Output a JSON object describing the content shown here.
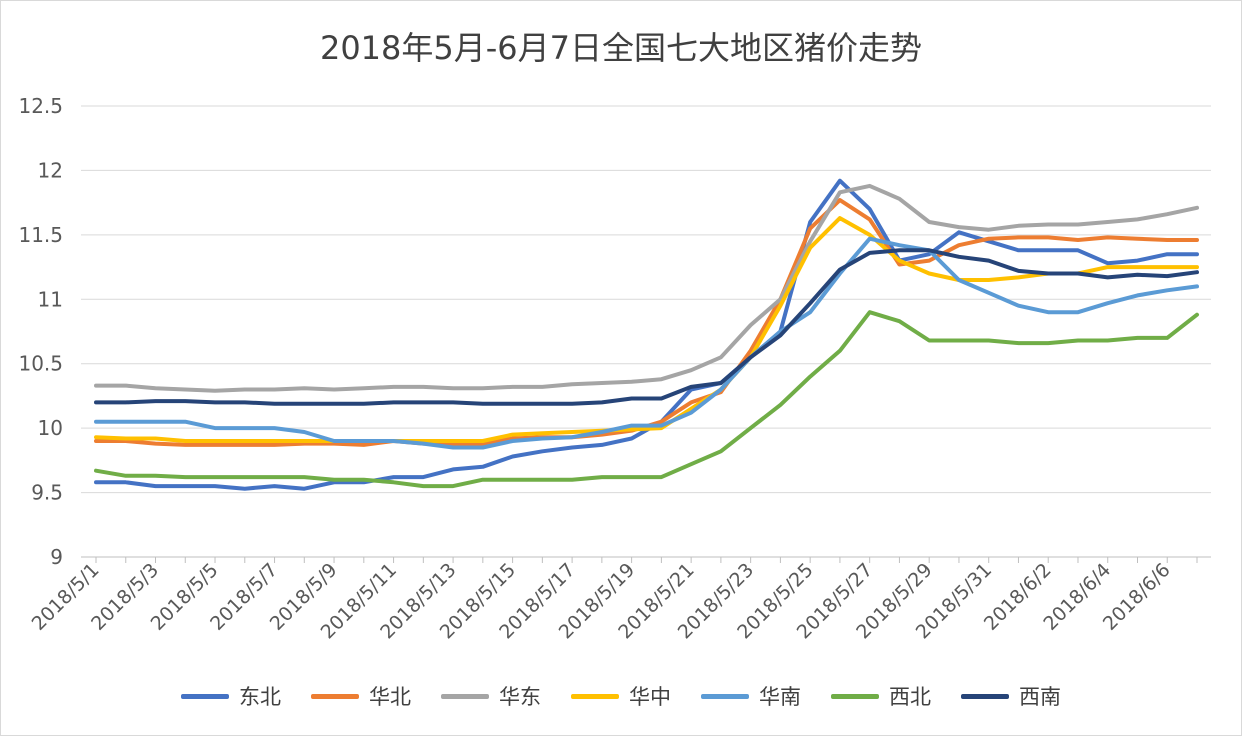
{
  "chart_data": {
    "type": "line",
    "title": "2018年5月-6月7日全国七大地区猪价走势",
    "xlabel": "",
    "ylabel": "",
    "ylim": [
      9,
      12.5
    ],
    "yticks": [
      "9",
      "9.5",
      "10",
      "10.5",
      "11",
      "11.5",
      "12",
      "12.5"
    ],
    "grid": true,
    "legend_position": "bottom",
    "x_labels": [
      "2018/5/1",
      "2018/5/3",
      "2018/5/5",
      "2018/5/7",
      "2018/5/9",
      "2018/5/11",
      "2018/5/13",
      "2018/5/15",
      "2018/5/17",
      "2018/5/19",
      "2018/5/21",
      "2018/5/23",
      "2018/5/25",
      "2018/5/27",
      "2018/5/29",
      "2018/5/31",
      "2018/6/2",
      "2018/6/4",
      "2018/6/6"
    ],
    "x": [
      "2018/5/1",
      "2018/5/2",
      "2018/5/3",
      "2018/5/4",
      "2018/5/5",
      "2018/5/6",
      "2018/5/7",
      "2018/5/8",
      "2018/5/9",
      "2018/5/10",
      "2018/5/11",
      "2018/5/12",
      "2018/5/13",
      "2018/5/14",
      "2018/5/15",
      "2018/5/16",
      "2018/5/17",
      "2018/5/18",
      "2018/5/19",
      "2018/5/20",
      "2018/5/21",
      "2018/5/22",
      "2018/5/23",
      "2018/5/24",
      "2018/5/25",
      "2018/5/26",
      "2018/5/27",
      "2018/5/28",
      "2018/5/29",
      "2018/5/30",
      "2018/5/31",
      "2018/6/1",
      "2018/6/2",
      "2018/6/3",
      "2018/6/4",
      "2018/6/5",
      "2018/6/6",
      "2018/6/7"
    ],
    "series": [
      {
        "name": "东北",
        "color": "#4472c4",
        "values": [
          9.58,
          9.58,
          9.55,
          9.55,
          9.55,
          9.53,
          9.55,
          9.53,
          9.58,
          9.58,
          9.62,
          9.62,
          9.68,
          9.7,
          9.78,
          9.82,
          9.85,
          9.87,
          9.92,
          10.05,
          10.3,
          10.35,
          10.55,
          10.75,
          11.6,
          11.92,
          11.7,
          11.3,
          11.35,
          11.52,
          11.45,
          11.38,
          11.38,
          11.38,
          11.28,
          11.3,
          11.35,
          11.35
        ]
      },
      {
        "name": "华北",
        "color": "#ed7d31",
        "values": [
          9.9,
          9.9,
          9.88,
          9.87,
          9.87,
          9.87,
          9.87,
          9.88,
          9.88,
          9.87,
          9.9,
          9.88,
          9.88,
          9.88,
          9.92,
          9.93,
          9.93,
          9.95,
          9.98,
          10.05,
          10.2,
          10.28,
          10.6,
          11.0,
          11.55,
          11.77,
          11.62,
          11.27,
          11.3,
          11.42,
          11.47,
          11.48,
          11.48,
          11.46,
          11.48,
          11.47,
          11.46,
          11.46
        ]
      },
      {
        "name": "华东",
        "color": "#a5a5a5",
        "values": [
          10.33,
          10.33,
          10.31,
          10.3,
          10.29,
          10.3,
          10.3,
          10.31,
          10.3,
          10.31,
          10.32,
          10.32,
          10.31,
          10.31,
          10.32,
          10.32,
          10.34,
          10.35,
          10.36,
          10.38,
          10.45,
          10.55,
          10.8,
          11.0,
          11.45,
          11.83,
          11.88,
          11.78,
          11.6,
          11.56,
          11.54,
          11.57,
          11.58,
          11.58,
          11.6,
          11.62,
          11.66,
          11.71
        ]
      },
      {
        "name": "华中",
        "color": "#ffc000",
        "values": [
          9.93,
          9.92,
          9.92,
          9.9,
          9.9,
          9.9,
          9.9,
          9.9,
          9.9,
          9.9,
          9.9,
          9.9,
          9.9,
          9.9,
          9.95,
          9.96,
          9.97,
          9.98,
          9.99,
          10.0,
          10.15,
          10.3,
          10.55,
          10.95,
          11.4,
          11.63,
          11.5,
          11.3,
          11.2,
          11.15,
          11.15,
          11.17,
          11.2,
          11.2,
          11.25,
          11.25,
          11.25,
          11.25
        ]
      },
      {
        "name": "华南",
        "color": "#5b9bd5",
        "values": [
          10.05,
          10.05,
          10.05,
          10.05,
          10.0,
          10.0,
          10.0,
          9.97,
          9.9,
          9.9,
          9.9,
          9.88,
          9.85,
          9.85,
          9.9,
          9.92,
          9.93,
          9.97,
          10.02,
          10.02,
          10.12,
          10.3,
          10.55,
          10.75,
          10.9,
          11.2,
          11.47,
          11.42,
          11.38,
          11.15,
          11.05,
          10.95,
          10.9,
          10.9,
          10.97,
          11.03,
          11.07,
          11.1
        ]
      },
      {
        "name": "西北",
        "color": "#70ad47",
        "values": [
          9.67,
          9.63,
          9.63,
          9.62,
          9.62,
          9.62,
          9.62,
          9.62,
          9.6,
          9.6,
          9.58,
          9.55,
          9.55,
          9.6,
          9.6,
          9.6,
          9.6,
          9.62,
          9.62,
          9.62,
          9.72,
          9.82,
          10.0,
          10.18,
          10.4,
          10.6,
          10.9,
          10.83,
          10.68,
          10.68,
          10.68,
          10.66,
          10.66,
          10.68,
          10.68,
          10.7,
          10.7,
          10.88
        ]
      },
      {
        "name": "西南",
        "color": "#264478",
        "values": [
          10.2,
          10.2,
          10.21,
          10.21,
          10.2,
          10.2,
          10.19,
          10.19,
          10.19,
          10.19,
          10.2,
          10.2,
          10.2,
          10.19,
          10.19,
          10.19,
          10.19,
          10.2,
          10.23,
          10.23,
          10.32,
          10.35,
          10.55,
          10.72,
          10.97,
          11.23,
          11.36,
          11.38,
          11.38,
          11.33,
          11.3,
          11.22,
          11.2,
          11.2,
          11.17,
          11.19,
          11.18,
          11.21
        ]
      }
    ]
  }
}
